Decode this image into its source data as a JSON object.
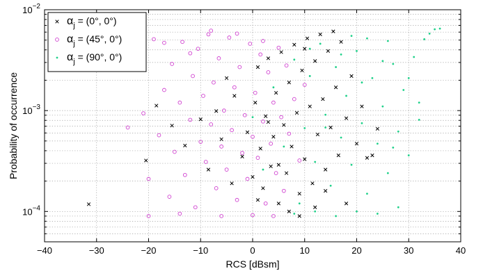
{
  "chart_data": {
    "type": "scatter",
    "title": "",
    "xlabel": "RCS [dBsm]",
    "ylabel": "Probability of occurrence",
    "xlim": [
      -40,
      40
    ],
    "ylim": [
      5e-05,
      0.01
    ],
    "yscale": "log",
    "grid": true,
    "legend_position": "top-left",
    "x_ticks": [
      "−40",
      "−30",
      "−20",
      "−10",
      "0",
      "10",
      "20",
      "30",
      "40"
    ],
    "y_ticks": [
      {
        "base": "10",
        "exp": "−2",
        "value": 0.01
      },
      {
        "base": "10",
        "exp": "−3",
        "value": 0.001
      },
      {
        "base": "10",
        "exp": "−4",
        "value": 0.0001
      }
    ],
    "series": [
      {
        "name": "α_j = (0°, 0°)",
        "legend_symbol": "α",
        "legend_sub": "j",
        "legend_rest": " = (0°, 0°)",
        "marker": "x",
        "color": "#000000",
        "points": [
          [
            -31.5,
            0.000118
          ],
          [
            -20.5,
            0.00032
          ],
          [
            -18.5,
            0.00112
          ],
          [
            -15.5,
            0.00071
          ],
          [
            -13.0,
            0.00045
          ],
          [
            -10.0,
            0.00082
          ],
          [
            -8.5,
            0.00026
          ],
          [
            -6.0,
            0.00052
          ],
          [
            -5.0,
            0.0021
          ],
          [
            -3.5,
            0.0014
          ],
          [
            -2.0,
            0.00035
          ],
          [
            -1.0,
            0.00061
          ],
          [
            0.0,
            0.00022
          ],
          [
            0.5,
            0.0012
          ],
          [
            1.0,
            0.0027
          ],
          [
            1.5,
            0.00042
          ],
          [
            2.0,
            0.00017
          ],
          [
            2.5,
            0.00088
          ],
          [
            3.0,
            0.0033
          ],
          [
            3.5,
            0.00028
          ],
          [
            4.0,
            0.00055
          ],
          [
            4.5,
            0.0015
          ],
          [
            5.0,
            0.00012
          ],
          [
            5.5,
            0.0038
          ],
          [
            6.0,
            0.00072
          ],
          [
            6.5,
            0.00024
          ],
          [
            7.0,
            0.0019
          ],
          [
            7.5,
            0.00044
          ],
          [
            8.0,
            0.0045
          ],
          [
            8.5,
            0.00095
          ],
          [
            9.0,
            0.00015
          ],
          [
            9.5,
            0.0025
          ],
          [
            10.0,
            0.00033
          ],
          [
            10.5,
            0.0052
          ],
          [
            11.0,
            0.0011
          ],
          [
            11.5,
            0.00019
          ],
          [
            12.0,
            0.0031
          ],
          [
            12.5,
            0.00058
          ],
          [
            13.0,
            0.0057
          ],
          [
            13.5,
            0.0013
          ],
          [
            14.0,
            0.00026
          ],
          [
            14.5,
            0.0039
          ],
          [
            15.0,
            0.00068
          ],
          [
            15.5,
            0.0061
          ],
          [
            16.0,
            0.0017
          ],
          [
            16.5,
            0.00036
          ],
          [
            17.0,
            0.0048
          ],
          [
            18.0,
            0.00084
          ],
          [
            19.0,
            0.0022
          ],
          [
            20.0,
            0.00047
          ],
          [
            21.0,
            0.0011
          ],
          [
            22.0,
            0.00034
          ],
          [
            23.0,
            0.00036
          ],
          [
            24.0,
            0.00066
          ],
          [
            7.0,
            0.0001
          ],
          [
            5.0,
            0.00029
          ],
          [
            3.0,
            0.00077
          ],
          [
            1.0,
            0.00013
          ],
          [
            -4.0,
            0.00019
          ],
          [
            -7.0,
            0.00099
          ],
          [
            9.0,
            9e-05
          ],
          [
            12.0,
            0.00011
          ],
          [
            14.0,
            0.00016
          ],
          [
            18.0,
            0.00012
          ],
          [
            10.0,
            0.0041
          ]
        ]
      },
      {
        "name": "α_j = (45°, 0°)",
        "legend_symbol": "α",
        "legend_sub": "j",
        "legend_rest": " = (45°, 0°)",
        "marker": "o",
        "color": "#d040d0",
        "points": [
          [
            -24.0,
            0.00068
          ],
          [
            -22.0,
            0.0035
          ],
          [
            -21.0,
            0.00094
          ],
          [
            -20.0,
            0.00021
          ],
          [
            -19.0,
            0.0051
          ],
          [
            -18.0,
            0.00057
          ],
          [
            -17.0,
            0.0016
          ],
          [
            -16.0,
            0.00014
          ],
          [
            -15.5,
            0.0029
          ],
          [
            -15.0,
            0.00039
          ],
          [
            -14.0,
            0.0012
          ],
          [
            -13.5,
            0.0048
          ],
          [
            -13.0,
            0.00023
          ],
          [
            -12.0,
            0.00081
          ],
          [
            -11.5,
            0.0022
          ],
          [
            -11.0,
            0.00011
          ],
          [
            -10.5,
            0.0041
          ],
          [
            -10.0,
            0.00049
          ],
          [
            -9.5,
            0.0014
          ],
          [
            -9.0,
            0.00031
          ],
          [
            -8.5,
            0.0057
          ],
          [
            -8.0,
            0.00073
          ],
          [
            -7.5,
            0.0019
          ],
          [
            -7.0,
            0.00017
          ],
          [
            -6.5,
            0.0033
          ],
          [
            -6.0,
            0.00044
          ],
          [
            -5.5,
            0.001
          ],
          [
            -5.0,
            0.00026
          ],
          [
            -4.5,
            0.0053
          ],
          [
            -4.0,
            0.00064
          ],
          [
            -3.5,
            0.0017
          ],
          [
            -3.0,
            0.00013
          ],
          [
            -2.5,
            0.0027
          ],
          [
            -2.0,
            0.00038
          ],
          [
            -1.5,
            0.0009
          ],
          [
            -1.0,
            0.00021
          ],
          [
            -0.5,
            0.0046
          ],
          [
            0.0,
            0.00055
          ],
          [
            0.5,
            0.0015
          ],
          [
            1.0,
            0.00034
          ],
          [
            1.5,
            0.0036
          ],
          [
            2.0,
            0.00078
          ],
          [
            2.5,
            0.00012
          ],
          [
            3.0,
            0.0024
          ],
          [
            3.5,
            0.00047
          ],
          [
            4.0,
            0.0012
          ],
          [
            4.5,
            0.00024
          ],
          [
            5.0,
            0.0042
          ],
          [
            5.5,
            0.00086
          ],
          [
            6.0,
            0.00016
          ],
          [
            6.5,
            0.0028
          ],
          [
            7.0,
            0.00059
          ],
          [
            8.0,
            0.0013
          ],
          [
            9.0,
            0.00032
          ],
          [
            10.0,
            0.0018
          ],
          [
            -17.0,
            0.0047
          ],
          [
            -12.0,
            0.0037
          ],
          [
            -8.0,
            0.0062
          ],
          [
            -3.0,
            0.0058
          ],
          [
            2.0,
            0.0049
          ],
          [
            -20.0,
            9e-05
          ],
          [
            -14.0,
            9.5e-05
          ],
          [
            -6.0,
            9e-05
          ],
          [
            0.0,
            9.2e-05
          ],
          [
            4.0,
            9e-05
          ]
        ]
      },
      {
        "name": "α_j = (90°, 0°)",
        "legend_symbol": "α",
        "legend_sub": "j",
        "legend_rest": " = (90°, 0°)",
        "marker": ".",
        "color": "#1fd18a",
        "points": [
          [
            0.0,
            0.00086
          ],
          [
            2.0,
            0.00026
          ],
          [
            4.0,
            0.0017
          ],
          [
            6.0,
            0.00044
          ],
          [
            8.0,
            0.0032
          ],
          [
            9.0,
            0.00012
          ],
          [
            10.0,
            0.00067
          ],
          [
            11.0,
            0.0022
          ],
          [
            12.0,
            0.00031
          ],
          [
            13.0,
            0.0046
          ],
          [
            14.0,
            0.00091
          ],
          [
            15.0,
            0.00018
          ],
          [
            16.0,
            0.0027
          ],
          [
            17.0,
            0.00054
          ],
          [
            18.0,
            0.0014
          ],
          [
            19.0,
            0.00029
          ],
          [
            20.0,
            0.0039
          ],
          [
            21.0,
            0.00075
          ],
          [
            22.0,
            0.00015
          ],
          [
            23.0,
            0.0021
          ],
          [
            24.0,
            0.00047
          ],
          [
            25.0,
            0.0011
          ],
          [
            26.0,
            0.00024
          ],
          [
            27.0,
            0.0029
          ],
          [
            28.0,
            0.00062
          ],
          [
            29.0,
            0.0016
          ],
          [
            30.0,
            0.00036
          ],
          [
            31.0,
            0.0034
          ],
          [
            32.0,
            0.00081
          ],
          [
            33.0,
            0.0051
          ],
          [
            34.0,
            0.0058
          ],
          [
            35.0,
            0.0064
          ],
          [
            36.0,
            0.0065
          ],
          [
            19.0,
            0.0055
          ],
          [
            22.0,
            0.0052
          ],
          [
            26.0,
            0.0049
          ],
          [
            28.0,
            0.00011
          ],
          [
            24.0,
            9.5e-05
          ],
          [
            20.0,
            0.0001
          ],
          [
            16.0,
            9e-05
          ],
          [
            12.0,
            0.0001
          ],
          [
            8.0,
            9.5e-05
          ],
          [
            30.0,
            0.0021
          ],
          [
            32.0,
            0.0012
          ],
          [
            27.0,
            0.00043
          ],
          [
            25.0,
            0.0031
          ],
          [
            21.0,
            0.0019
          ],
          [
            17.0,
            0.0036
          ],
          [
            14.0,
            0.00068
          ],
          [
            11.0,
            0.0041
          ]
        ]
      }
    ]
  }
}
